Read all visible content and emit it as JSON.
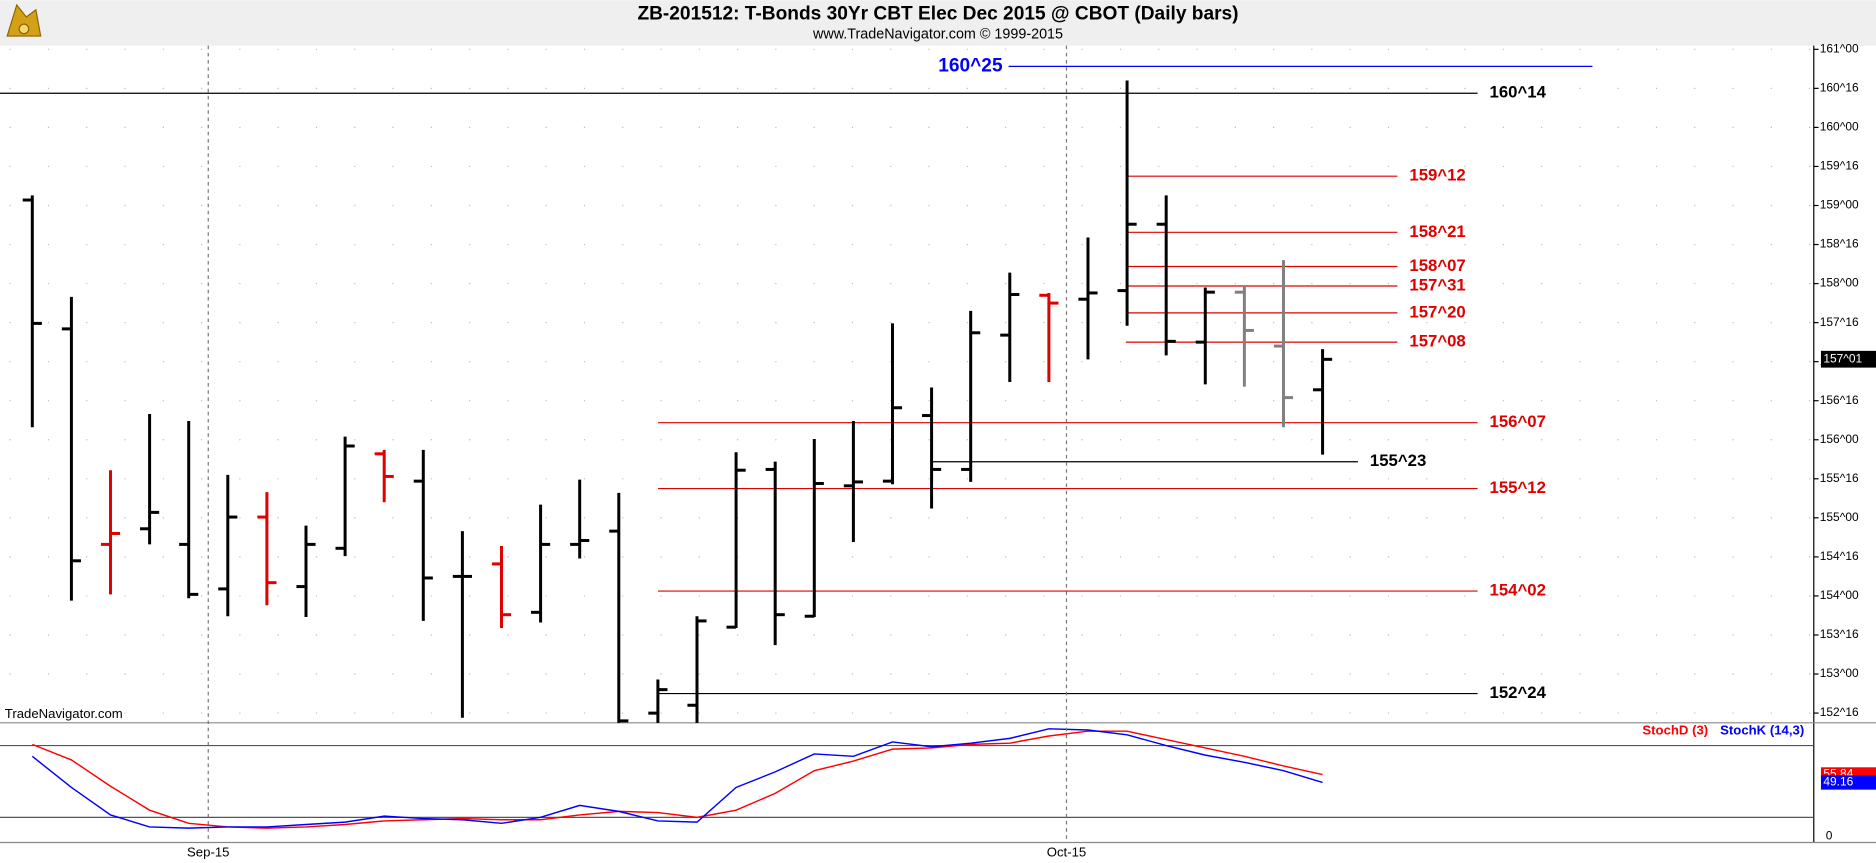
{
  "chart_data": [
    {
      "type": "ohlc",
      "title": "ZB-201512:  T-Bonds 30Yr CBT Elec Dec 2015 @ CBOT  (Daily bars)",
      "subtitle": "www.TradeNavigator.com © 1999-2015",
      "watermark": "TradeNavigator.com",
      "open": [
        159.07,
        157.42,
        154.66,
        154.86,
        154.66,
        154.09,
        155.01,
        154.12,
        154.61,
        155.82,
        155.47,
        154.25,
        154.41,
        153.79,
        154.66,
        154.83,
        152.5,
        152.6,
        153.6,
        155.62,
        153.74,
        155.41,
        155.47,
        156.31,
        155.62,
        157.34,
        157.85,
        157.8,
        157.91,
        158.76,
        157.25,
        157.89,
        157.2,
        156.64
      ],
      "high": [
        159.13,
        157.83,
        155.61,
        156.33,
        156.24,
        155.55,
        155.33,
        154.9,
        156.04,
        155.87,
        155.87,
        154.83,
        154.64,
        155.17,
        155.49,
        155.32,
        152.93,
        153.74,
        155.84,
        155.72,
        156.01,
        156.24,
        157.49,
        156.67,
        157.65,
        158.14,
        157.88,
        158.59,
        160.6,
        159.13,
        157.95,
        157.97,
        158.3,
        157.16
      ],
      "low": [
        156.16,
        153.94,
        154.02,
        154.66,
        153.97,
        153.74,
        153.88,
        153.73,
        154.51,
        155.2,
        153.68,
        152.44,
        153.59,
        153.66,
        154.48,
        152.36,
        152.29,
        152.36,
        153.59,
        153.37,
        153.73,
        154.69,
        155.43,
        155.12,
        155.46,
        156.74,
        156.74,
        157.03,
        157.46,
        157.08,
        156.71,
        156.68,
        156.16,
        155.81
      ],
      "close": [
        157.49,
        154.45,
        154.8,
        155.07,
        154.02,
        155.01,
        154.17,
        154.66,
        155.92,
        155.53,
        154.23,
        154.25,
        153.76,
        154.66,
        154.71,
        152.4,
        152.8,
        153.68,
        155.61,
        153.76,
        155.44,
        155.46,
        156.41,
        155.62,
        157.37,
        157.86,
        157.75,
        157.88,
        158.76,
        157.26,
        157.89,
        157.4,
        156.54,
        157.03
      ],
      "colors": [
        "#000",
        "#000",
        "#e00000",
        "#000",
        "#000",
        "#000",
        "#e00000",
        "#000",
        "#000",
        "#e00000",
        "#000",
        "#000",
        "#e00000",
        "#000",
        "#000",
        "#000",
        "#000",
        "#000",
        "#000",
        "#000",
        "#000",
        "#000",
        "#000",
        "#000",
        "#000",
        "#000",
        "#e00000",
        "#000",
        "#000",
        "#000",
        "#000",
        "#808080",
        "#808080",
        "#000"
      ],
      "ylim": [
        152.375,
        161.0469
      ],
      "yticks": [
        {
          "value": 152.5,
          "label": "152^16"
        },
        {
          "value": 153,
          "label": "153^00"
        },
        {
          "value": 153.5,
          "label": "153^16"
        },
        {
          "value": 154,
          "label": "154^00"
        },
        {
          "value": 154.5,
          "label": "154^16"
        },
        {
          "value": 155,
          "label": "155^00"
        },
        {
          "value": 155.5,
          "label": "155^16"
        },
        {
          "value": 156,
          "label": "156^00"
        },
        {
          "value": 156.5,
          "label": "156^16"
        },
        {
          "value": 157,
          "label": "157^00"
        },
        {
          "value": 157.5,
          "label": "157^16"
        },
        {
          "value": 158,
          "label": "158^00"
        },
        {
          "value": 158.5,
          "label": "158^16"
        },
        {
          "value": 159,
          "label": "159^00"
        },
        {
          "value": 159.5,
          "label": "159^16"
        },
        {
          "value": 160,
          "label": "160^00"
        },
        {
          "value": 160.5,
          "label": "160^16"
        },
        {
          "value": 161,
          "label": "161^00"
        }
      ],
      "xticks": [
        {
          "value": 4.5,
          "label": "Sep-15"
        },
        {
          "value": 26.45,
          "label": "Oct-15"
        }
      ],
      "levels": [
        {
          "value": 160.78125,
          "label": "160^25",
          "color": "#0000ff"
        },
        {
          "value": 160.4375,
          "label": "160^14",
          "color": "#000000"
        },
        {
          "value": 159.375,
          "label": "159^12",
          "color": "#e00000"
        },
        {
          "value": 158.65625,
          "label": "158^21",
          "color": "#e00000"
        },
        {
          "value": 158.21875,
          "label": "158^07",
          "color": "#e00000"
        },
        {
          "value": 157.96875,
          "label": "157^31",
          "color": "#e00000"
        },
        {
          "value": 157.625,
          "label": "157^20",
          "color": "#e00000"
        },
        {
          "value": 157.25,
          "label": "157^08",
          "color": "#e00000"
        },
        {
          "value": 156.21875,
          "label": "156^07",
          "color": "#e00000"
        },
        {
          "value": 155.71875,
          "label": "155^23",
          "color": "#000000"
        },
        {
          "value": 155.375,
          "label": "155^12",
          "color": "#e00000"
        },
        {
          "value": 154.0625,
          "label": "154^02",
          "color": "#e00000"
        },
        {
          "value": 152.75,
          "label": "152^24",
          "color": "#000000"
        }
      ],
      "last": {
        "value": 157.03125,
        "label": "157^01"
      },
      "grid": true
    },
    {
      "type": "line",
      "series": [
        {
          "name": "StochD (3)",
          "color": "#ff0000",
          "values": [
            81,
            68,
            46,
            26,
            15,
            12,
            11,
            12,
            14,
            17,
            18,
            19,
            18,
            18,
            22,
            25,
            24,
            20,
            26,
            40,
            59,
            67,
            77,
            78,
            81,
            82,
            88,
            92,
            92,
            85,
            78,
            71,
            63,
            55.84
          ]
        },
        {
          "name": "StochK (14,3)",
          "color": "#0000ff",
          "values": [
            71,
            45,
            22,
            12,
            11,
            12,
            12,
            14,
            16,
            21,
            19,
            18,
            15,
            20,
            30,
            25,
            17,
            16,
            45,
            58,
            73,
            71,
            83,
            79,
            82,
            86,
            94,
            93,
            89,
            80,
            72,
            66,
            59,
            49.16
          ]
        }
      ],
      "ylim": [
        0,
        100
      ],
      "yticks": [
        0
      ],
      "hlines": [
        20,
        80
      ]
    }
  ]
}
